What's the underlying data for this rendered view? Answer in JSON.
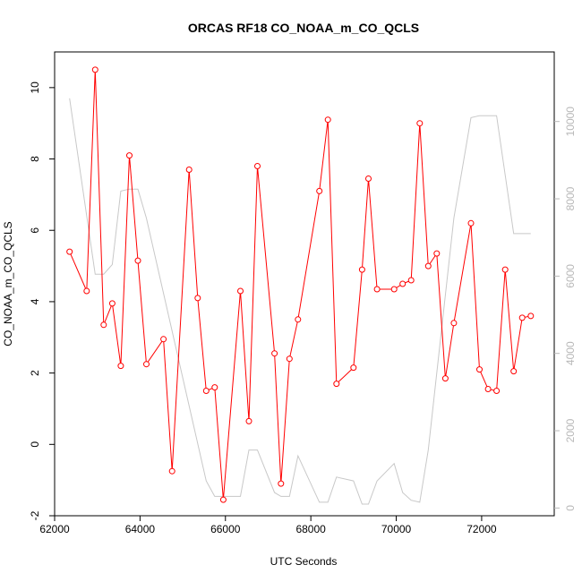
{
  "chart_data": {
    "type": "line",
    "title": "ORCAS RF18 CO_NOAA_m_CO_QCLS",
    "xlabel": "UTC Seconds",
    "ylabel": "CO_NOAA_m_CO_QCLS",
    "xlim": [
      62000,
      73700
    ],
    "ylim": [
      -2,
      11
    ],
    "y2lim": [
      -200,
      11800
    ],
    "x_ticks": [
      62000,
      64000,
      66000,
      68000,
      70000,
      72000
    ],
    "y_ticks": [
      -2,
      0,
      2,
      4,
      6,
      8,
      10
    ],
    "y2_ticks": [
      0,
      2000,
      4000,
      6000,
      8000,
      10000
    ],
    "grid": false,
    "colors": {
      "co": "#ff0000",
      "altitude": "#c8c8c8"
    },
    "series": [
      {
        "role": "co",
        "marker": "open-circle",
        "axis": "left",
        "x": [
          62350,
          62750,
          62950,
          63150,
          63350,
          63550,
          63750,
          63950,
          64150,
          64550,
          64750,
          65150,
          65350,
          65550,
          65750,
          65950,
          66350,
          66550,
          66750,
          67150,
          67300,
          67500,
          67700,
          68200,
          68400,
          68600,
          69000,
          69200,
          69350,
          69550,
          69950,
          70150,
          70350,
          70550,
          70750,
          70950,
          71150,
          71350,
          71750,
          71950,
          72150,
          72350,
          72550,
          72750,
          72950,
          73150
        ],
        "y": [
          5.4,
          4.3,
          10.5,
          3.35,
          3.95,
          2.2,
          8.1,
          5.15,
          2.25,
          2.95,
          -0.75,
          7.7,
          4.1,
          1.5,
          1.6,
          -1.55,
          4.3,
          0.65,
          7.8,
          2.55,
          -1.1,
          2.4,
          3.5,
          7.1,
          9.1,
          1.7,
          2.15,
          4.9,
          7.45,
          4.35,
          4.35,
          4.5,
          4.6,
          9.0,
          5.0,
          5.35,
          1.85,
          3.4,
          6.2,
          2.1,
          1.55,
          1.5,
          4.9,
          2.05,
          3.55,
          3.6
        ]
      },
      {
        "role": "altitude",
        "marker": "none",
        "axis": "right",
        "x": [
          62350,
          62950,
          63150,
          63350,
          63550,
          63750,
          63950,
          64150,
          65550,
          65750,
          66350,
          66550,
          66750,
          67150,
          67300,
          67500,
          67700,
          68200,
          68400,
          68600,
          69000,
          69200,
          69350,
          69550,
          69950,
          70150,
          70350,
          70550,
          70750,
          71350,
          71750,
          71950,
          72150,
          72350,
          72750,
          73150
        ],
        "y": [
          10600,
          6050,
          6050,
          6300,
          8200,
          8250,
          8250,
          7500,
          700,
          300,
          300,
          1500,
          1500,
          400,
          300,
          300,
          1350,
          150,
          150,
          800,
          700,
          100,
          100,
          700,
          1150,
          400,
          200,
          150,
          1500,
          7500,
          10100,
          10150,
          10150,
          10150,
          7100,
          7100
        ]
      }
    ]
  }
}
